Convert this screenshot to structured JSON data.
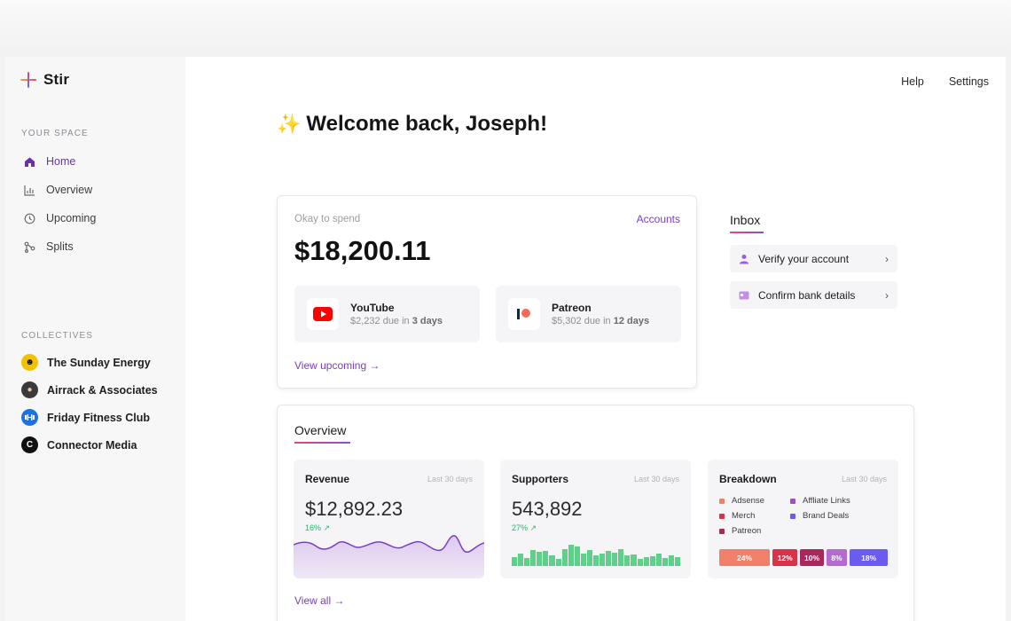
{
  "app": {
    "name": "Stir"
  },
  "header": {
    "links": [
      "Help",
      "Settings"
    ]
  },
  "sidebar": {
    "space_label": "YOUR SPACE",
    "nav": [
      {
        "label": "Home",
        "icon": "home-icon",
        "active": true
      },
      {
        "label": "Overview",
        "icon": "bar-chart-icon"
      },
      {
        "label": "Upcoming",
        "icon": "clock-icon"
      },
      {
        "label": "Splits",
        "icon": "split-icon"
      }
    ],
    "collectives_label": "COLLECTIVES",
    "collectives": [
      {
        "label": "The Sunday Energy",
        "color": "#f2c200"
      },
      {
        "label": "Airrack & Associates",
        "color": "#3a3a3a"
      },
      {
        "label": "Friday Fitness Club",
        "color": "#1f6fe5"
      },
      {
        "label": "Connector Media",
        "color": "#111111"
      }
    ]
  },
  "welcome": {
    "emoji": "✨",
    "text": "Welcome back, Joseph!"
  },
  "spend": {
    "label": "Okay to spend",
    "accounts_link": "Accounts",
    "amount": "$18,200.11",
    "dues": [
      {
        "name": "YouTube",
        "amount": "$2,232 due in",
        "days": "3 days",
        "icon": "youtube-icon"
      },
      {
        "name": "Patreon",
        "amount": "$5,302 due in",
        "days": "12 days",
        "icon": "patreon-icon"
      }
    ],
    "view_link": "View upcoming →"
  },
  "inbox": {
    "title": "Inbox",
    "items": [
      {
        "label": "Verify your account",
        "icon": "user-icon"
      },
      {
        "label": "Confirm bank details",
        "icon": "card-icon"
      }
    ]
  },
  "overview": {
    "title": "Overview",
    "revenue": {
      "title": "Revenue",
      "period": "Last 30 days",
      "value": "$12,892.23",
      "change": "16%"
    },
    "supporters": {
      "title": "Supporters",
      "period": "Last 30 days",
      "value": "543,892",
      "change": "27%"
    },
    "breakdown": {
      "title": "Breakdown",
      "period": "Last 30 days",
      "legend": [
        {
          "label": "Adsense",
          "color": "#f0806a"
        },
        {
          "label": "Affliate Links",
          "color": "#a04fc8"
        },
        {
          "label": "Merch",
          "color": "#d9334a"
        },
        {
          "label": "Brand Deals",
          "color": "#6a5cf0"
        },
        {
          "label": "Patreon",
          "color": "#a8285c"
        }
      ],
      "bars": [
        {
          "label": "24%",
          "color": "#f0806a"
        },
        {
          "label": "12%",
          "color": "#d9334a"
        },
        {
          "label": "10%",
          "color": "#a8285c"
        },
        {
          "label": "8%",
          "color": "#b46ad0"
        },
        {
          "label": "18%",
          "color": "#6a5cf0"
        }
      ]
    },
    "view_link": "View all →"
  }
}
